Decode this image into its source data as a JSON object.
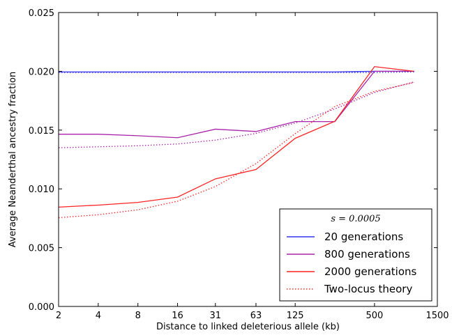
{
  "chart_data": {
    "type": "line",
    "xlabel": "Distance to linked deleterious allele (kb)",
    "ylabel": "Average Neanderthal ancestry fraction",
    "x_scale": "log",
    "xlim": [
      2,
      1500
    ],
    "ylim": [
      0,
      0.025
    ],
    "x_ticks": [
      2,
      4,
      8,
      16,
      31,
      63,
      125,
      500,
      1500
    ],
    "x_tick_labels": [
      "2",
      "4",
      "8",
      "16",
      "31",
      "63",
      "125",
      "500",
      "1500"
    ],
    "y_ticks": [
      0,
      0.005,
      0.01,
      0.015,
      0.02,
      0.025
    ],
    "y_tick_labels": [
      "0.000",
      "0.005",
      "0.010",
      "0.015",
      "0.020",
      "0.025"
    ],
    "grid": false,
    "legend_position": "lower-right",
    "legend_title": "s = 0.0005",
    "series": [
      {
        "name": "20 generations",
        "color": "#3333ee",
        "style": "solid",
        "x": [
          2,
          4,
          8,
          16,
          31,
          63,
          125,
          250,
          500,
          1000
        ],
        "y": [
          0.01995,
          0.01995,
          0.01995,
          0.01995,
          0.01995,
          0.01995,
          0.01995,
          0.01995,
          0.02,
          0.02
        ]
      },
      {
        "name": "800 generations",
        "color": "#aa22aa",
        "style": "solid",
        "x": [
          2,
          4,
          8,
          16,
          31,
          63,
          125,
          250,
          500,
          1000
        ],
        "y": [
          0.01465,
          0.01465,
          0.01452,
          0.01435,
          0.01508,
          0.01488,
          0.01572,
          0.01572,
          0.02,
          0.02
        ]
      },
      {
        "name": "2000 generations",
        "color": "#ff2222",
        "style": "solid",
        "x": [
          2,
          4,
          8,
          16,
          31,
          63,
          125,
          250,
          500,
          1000
        ],
        "y": [
          0.00845,
          0.00862,
          0.00885,
          0.0093,
          0.01085,
          0.01165,
          0.0143,
          0.01575,
          0.0204,
          0.02
        ]
      },
      {
        "name": "",
        "color": "#3333ee",
        "style": "dotted",
        "x": [
          2,
          4,
          8,
          16,
          31,
          63,
          125,
          250,
          500,
          1000
        ],
        "y": [
          0.0199,
          0.0199,
          0.0199,
          0.0199,
          0.0199,
          0.0199,
          0.0199,
          0.0199,
          0.0199,
          0.01995
        ]
      },
      {
        "name": "",
        "color": "#aa22aa",
        "style": "dotted",
        "x": [
          2,
          4,
          8,
          16,
          31,
          63,
          125,
          250,
          500,
          1000
        ],
        "y": [
          0.0135,
          0.01358,
          0.01367,
          0.01382,
          0.01415,
          0.01472,
          0.0156,
          0.0168,
          0.0182,
          0.0191
        ]
      },
      {
        "name": "Two-locus theory",
        "color": "#ff2222",
        "style": "dotted",
        "x": [
          2,
          4,
          8,
          16,
          31,
          63,
          125,
          250,
          500,
          1000
        ],
        "y": [
          0.00755,
          0.0078,
          0.00822,
          0.00895,
          0.0102,
          0.01215,
          0.0147,
          0.017,
          0.0183,
          0.01905
        ]
      }
    ]
  }
}
